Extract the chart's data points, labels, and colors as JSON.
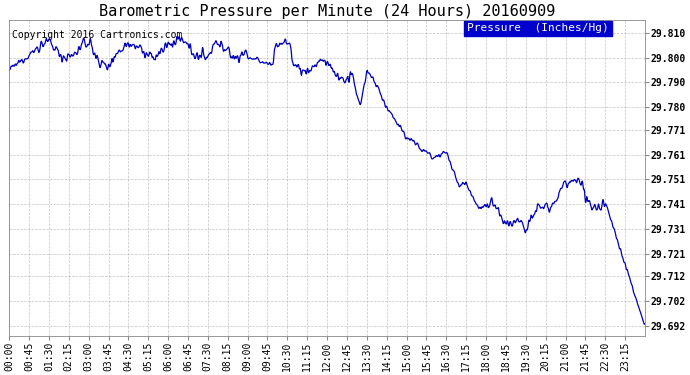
{
  "title": "Barometric Pressure per Minute (24 Hours) 20160909",
  "copyright": "Copyright 2016 Cartronics.com",
  "legend_label": "Pressure  (Inches/Hg)",
  "line_color": "#0000bb",
  "background_color": "#ffffff",
  "grid_color": "#aaaaaa",
  "ytick_labels": [
    "29.692",
    "29.702",
    "29.712",
    "29.721",
    "29.731",
    "29.741",
    "29.751",
    "29.761",
    "29.771",
    "29.780",
    "29.790",
    "29.800",
    "29.810"
  ],
  "ytick_values": [
    29.692,
    29.702,
    29.712,
    29.721,
    29.731,
    29.741,
    29.751,
    29.761,
    29.771,
    29.78,
    29.79,
    29.8,
    29.81
  ],
  "ylim": [
    29.688,
    29.815
  ],
  "xtick_labels": [
    "00:00",
    "00:45",
    "01:30",
    "02:15",
    "03:00",
    "03:45",
    "04:30",
    "05:15",
    "06:00",
    "06:45",
    "07:30",
    "08:15",
    "09:00",
    "09:45",
    "10:30",
    "11:15",
    "12:00",
    "12:45",
    "13:30",
    "14:15",
    "15:00",
    "15:45",
    "16:30",
    "17:15",
    "18:00",
    "18:45",
    "19:30",
    "20:15",
    "21:00",
    "21:45",
    "22:30",
    "23:15"
  ],
  "title_fontsize": 11,
  "copyright_fontsize": 7,
  "legend_fontsize": 8,
  "tick_fontsize": 7,
  "legend_bg": "#0000cc",
  "legend_text_color": "#ffffff"
}
